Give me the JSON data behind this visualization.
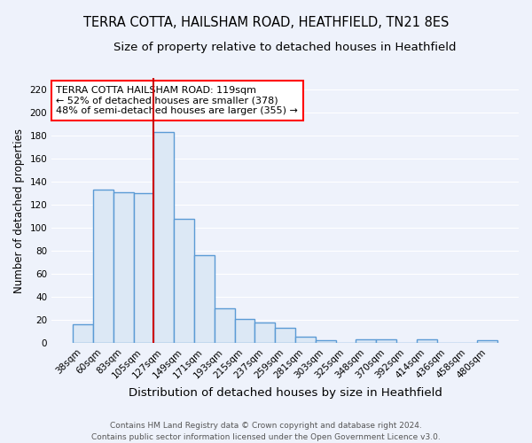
{
  "title": "TERRA COTTA, HAILSHAM ROAD, HEATHFIELD, TN21 8ES",
  "subtitle": "Size of property relative to detached houses in Heathfield",
  "xlabel": "Distribution of detached houses by size in Heathfield",
  "ylabel": "Number of detached properties",
  "categories": [
    "38sqm",
    "60sqm",
    "83sqm",
    "105sqm",
    "127sqm",
    "149sqm",
    "171sqm",
    "193sqm",
    "215sqm",
    "237sqm",
    "259sqm",
    "281sqm",
    "303sqm",
    "325sqm",
    "348sqm",
    "370sqm",
    "392sqm",
    "414sqm",
    "436sqm",
    "458sqm",
    "480sqm"
  ],
  "values": [
    16,
    133,
    131,
    130,
    183,
    108,
    76,
    30,
    21,
    18,
    13,
    5,
    2,
    0,
    3,
    3,
    0,
    3,
    0,
    0,
    2
  ],
  "bar_color": "#dce8f5",
  "bar_edge_color": "#5b9bd5",
  "bar_edge_width": 1.0,
  "red_line_index": 4,
  "red_line_color": "#cc0000",
  "annotation_text": "TERRA COTTA HAILSHAM ROAD: 119sqm\n← 52% of detached houses are smaller (378)\n48% of semi-detached houses are larger (355) →",
  "annotation_box_color": "white",
  "annotation_box_edge_color": "red",
  "ylim": [
    0,
    230
  ],
  "yticks": [
    0,
    20,
    40,
    60,
    80,
    100,
    120,
    140,
    160,
    180,
    200,
    220
  ],
  "bg_color": "#eef2fb",
  "grid_color": "white",
  "footer": "Contains HM Land Registry data © Crown copyright and database right 2024.\nContains public sector information licensed under the Open Government Licence v3.0.",
  "title_fontsize": 10.5,
  "subtitle_fontsize": 9.5,
  "xlabel_fontsize": 9.5,
  "ylabel_fontsize": 8.5,
  "tick_fontsize": 7.5,
  "annotation_fontsize": 8,
  "footer_fontsize": 6.5
}
